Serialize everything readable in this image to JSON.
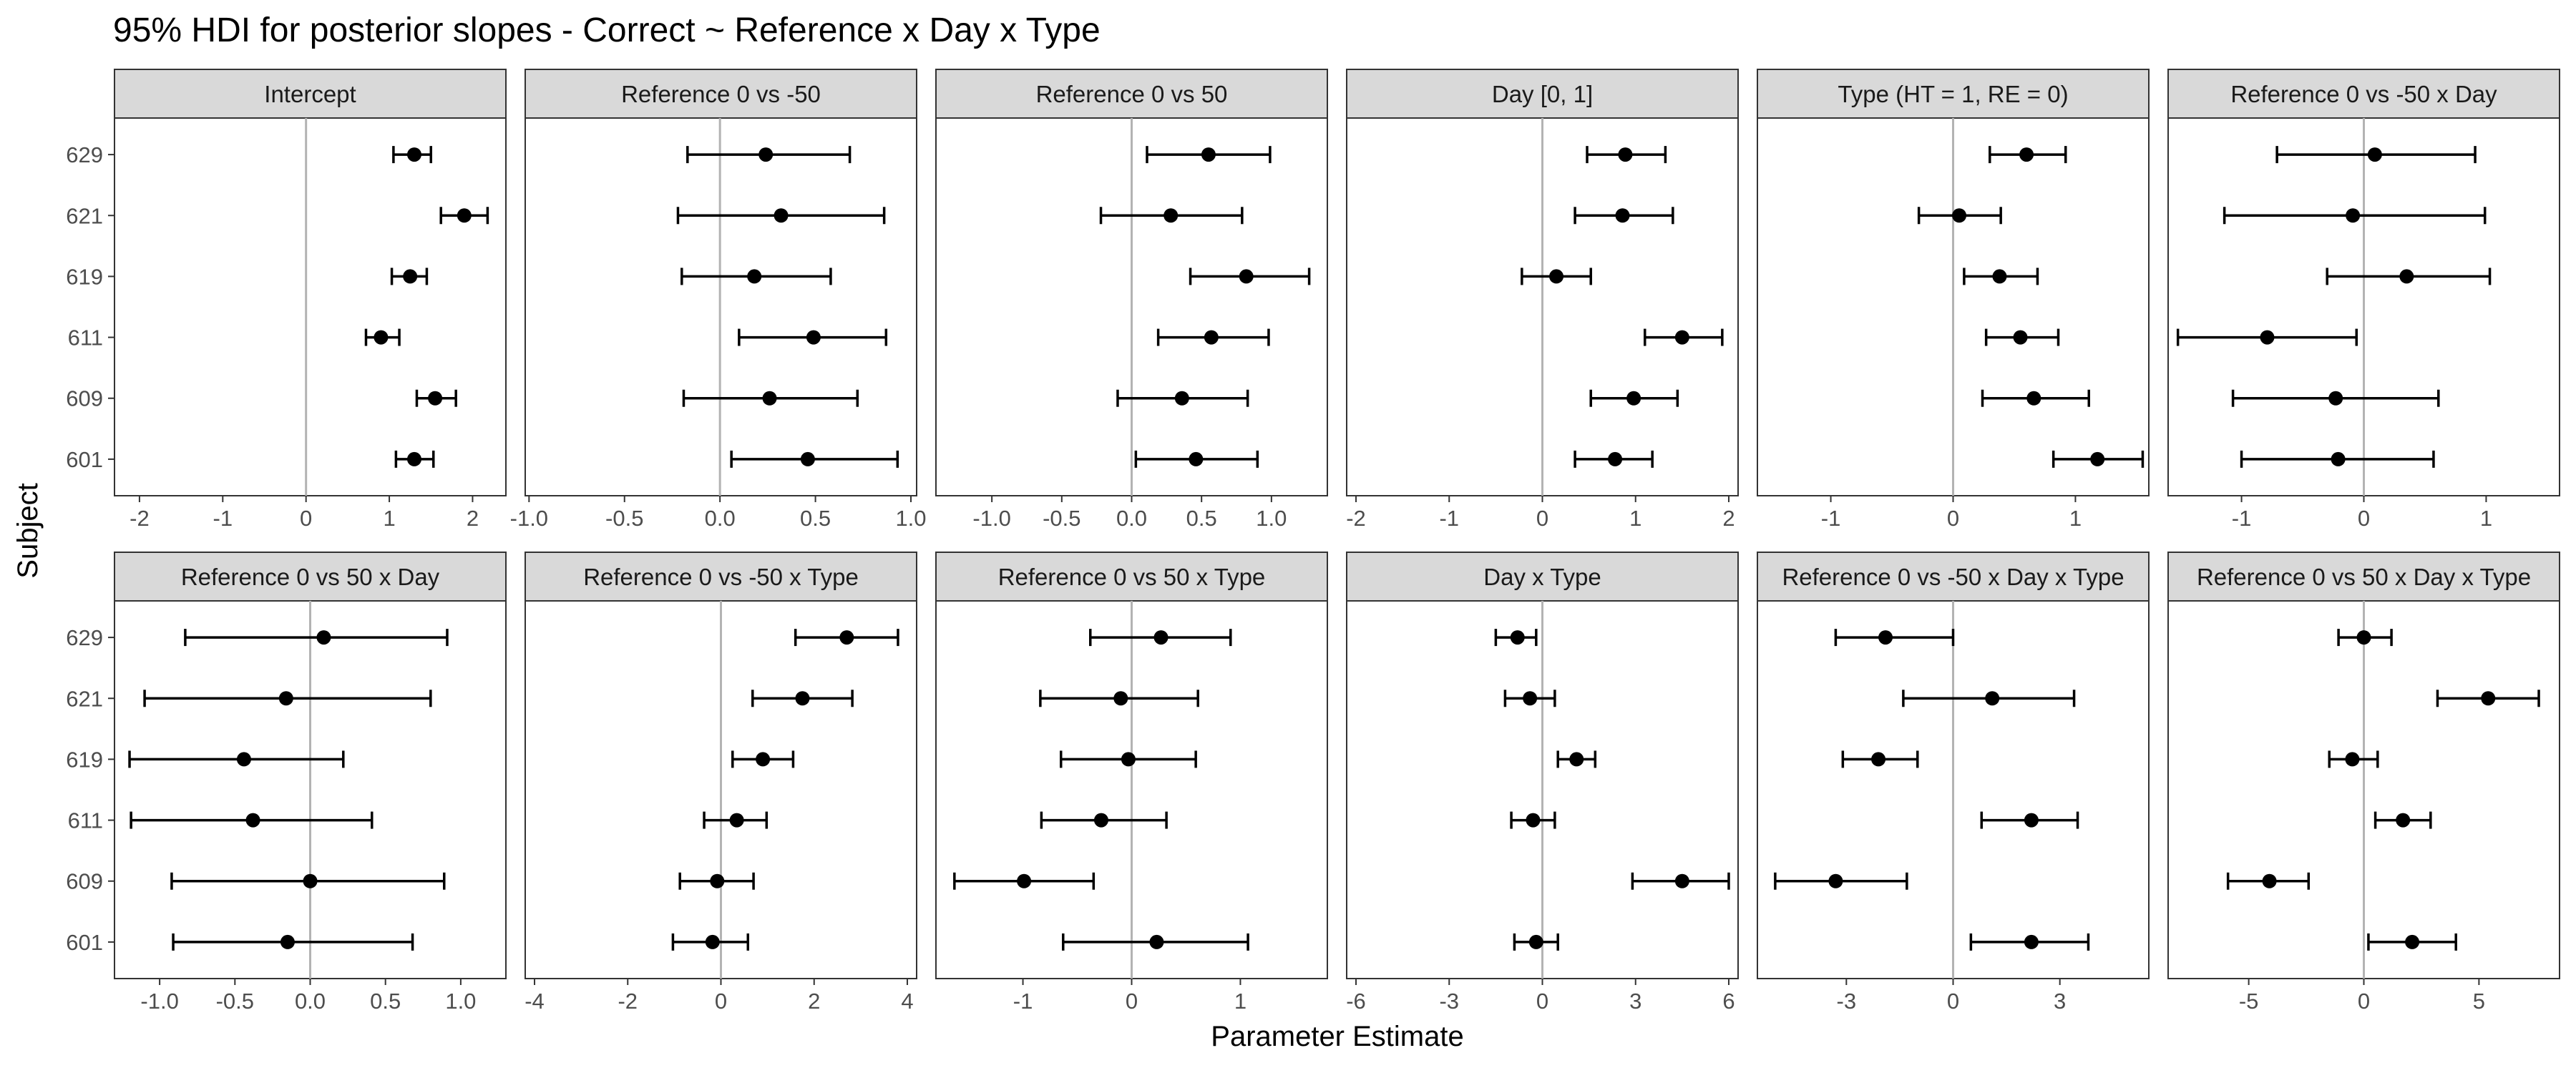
{
  "chart_data": {
    "type": "forest",
    "title": "95% HDI for posterior slopes - Correct ~ Reference x Day x Type",
    "xlabel": "Parameter Estimate",
    "ylabel": "Subject",
    "subjects": [
      "629",
      "621",
      "619",
      "611",
      "609",
      "601"
    ],
    "reference_line": 0,
    "grid": false,
    "panels": [
      {
        "name": "Intercept",
        "xlim": [
          -2.3,
          2.4
        ],
        "ticks": [
          -2,
          -1,
          0,
          1,
          2
        ],
        "tick_labels": [
          "-2",
          "-1",
          "0",
          "1",
          "2"
        ],
        "estimates": [
          1.3,
          1.9,
          1.25,
          0.9,
          1.55,
          1.3
        ],
        "lower": [
          1.05,
          1.62,
          1.03,
          0.72,
          1.33,
          1.08
        ],
        "upper": [
          1.5,
          2.18,
          1.45,
          1.12,
          1.8,
          1.53
        ]
      },
      {
        "name": "Reference 0 vs -50",
        "xlim": [
          -1.02,
          1.03
        ],
        "ticks": [
          -1.0,
          -0.5,
          0.0,
          0.5,
          1.0
        ],
        "tick_labels": [
          "-1.0",
          "-0.5",
          "0.0",
          "0.5",
          "1.0"
        ],
        "estimates": [
          0.24,
          0.32,
          0.18,
          0.49,
          0.26,
          0.46
        ],
        "lower": [
          -0.17,
          -0.22,
          -0.2,
          0.1,
          -0.19,
          0.06
        ],
        "upper": [
          0.68,
          0.86,
          0.58,
          0.87,
          0.72,
          0.93
        ]
      },
      {
        "name": "Reference 0 vs 50",
        "xlim": [
          -1.4,
          1.4
        ],
        "ticks": [
          -1.0,
          -0.5,
          0.0,
          0.5,
          1.0
        ],
        "tick_labels": [
          "-1.0",
          "-0.5",
          "0.0",
          "0.5",
          "1.0"
        ],
        "estimates": [
          0.55,
          0.28,
          0.82,
          0.57,
          0.36,
          0.46
        ],
        "lower": [
          0.11,
          -0.22,
          0.42,
          0.19,
          -0.1,
          0.03
        ],
        "upper": [
          0.99,
          0.79,
          1.27,
          0.98,
          0.83,
          0.9
        ]
      },
      {
        "name": "Day [0, 1]",
        "xlim": [
          -2.1,
          2.1
        ],
        "ticks": [
          -2,
          -1,
          0,
          1,
          2
        ],
        "tick_labels": [
          "-2",
          "-1",
          "0",
          "1",
          "2"
        ],
        "estimates": [
          0.89,
          0.86,
          0.15,
          1.5,
          0.98,
          0.78
        ],
        "lower": [
          0.48,
          0.35,
          -0.22,
          1.1,
          0.52,
          0.35
        ],
        "upper": [
          1.32,
          1.4,
          0.52,
          1.93,
          1.45,
          1.18
        ]
      },
      {
        "name": "Type (HT = 1, RE = 0)",
        "xlim": [
          -1.6,
          1.6
        ],
        "ticks": [
          -1,
          0,
          1
        ],
        "tick_labels": [
          "-1",
          "0",
          "1"
        ],
        "estimates": [
          0.6,
          0.05,
          0.38,
          0.55,
          0.66,
          1.18
        ],
        "lower": [
          0.3,
          -0.28,
          0.09,
          0.27,
          0.24,
          0.82
        ],
        "upper": [
          0.92,
          0.39,
          0.69,
          0.86,
          1.11,
          1.55
        ]
      },
      {
        "name": "Reference 0 vs -50 x Day",
        "xlim": [
          -1.6,
          1.6
        ],
        "ticks": [
          -1,
          0,
          1
        ],
        "tick_labels": [
          "-1",
          "0",
          "1"
        ],
        "estimates": [
          0.09,
          -0.09,
          0.35,
          -0.79,
          -0.23,
          -0.21
        ],
        "lower": [
          -0.71,
          -1.14,
          -0.3,
          -1.52,
          -1.07,
          -1.0
        ],
        "upper": [
          0.91,
          0.99,
          1.03,
          -0.06,
          0.61,
          0.57
        ]
      },
      {
        "name": "Reference 0 vs 50 x Day",
        "xlim": [
          -1.3,
          1.3
        ],
        "ticks": [
          -1.0,
          -0.5,
          0.0,
          0.5,
          1.0
        ],
        "tick_labels": [
          "-1.0",
          "-0.5",
          "0.0",
          "0.5",
          "1.0"
        ],
        "estimates": [
          0.09,
          -0.16,
          -0.44,
          -0.38,
          0.0,
          -0.15
        ],
        "lower": [
          -0.83,
          -1.1,
          -1.2,
          -1.19,
          -0.92,
          -0.91
        ],
        "upper": [
          0.91,
          0.8,
          0.22,
          0.41,
          0.89,
          0.68
        ]
      },
      {
        "name": "Reference 0 vs -50 x Type",
        "xlim": [
          -4.2,
          4.2
        ],
        "ticks": [
          -4,
          -2,
          0,
          2,
          4
        ],
        "tick_labels": [
          "-4",
          "-2",
          "0",
          "2",
          "4"
        ],
        "estimates": [
          2.7,
          1.75,
          0.9,
          0.34,
          -0.08,
          -0.18
        ],
        "lower": [
          1.6,
          0.68,
          0.25,
          -0.36,
          -0.88,
          -1.03
        ],
        "upper": [
          3.8,
          2.82,
          1.55,
          0.98,
          0.7,
          0.58
        ]
      },
      {
        "name": "Reference 0 vs 50 x Type",
        "xlim": [
          -1.8,
          1.8
        ],
        "ticks": [
          -1,
          0,
          1
        ],
        "tick_labels": [
          "-1",
          "0",
          "1"
        ],
        "estimates": [
          0.27,
          -0.1,
          -0.03,
          -0.28,
          -0.99,
          0.23
        ],
        "lower": [
          -0.38,
          -0.84,
          -0.65,
          -0.83,
          -1.63,
          -0.63
        ],
        "upper": [
          0.91,
          0.61,
          0.59,
          0.32,
          -0.35,
          1.07
        ]
      },
      {
        "name": "Day x Type",
        "xlim": [
          -6.3,
          6.3
        ],
        "ticks": [
          -6,
          -3,
          0,
          3,
          6
        ],
        "tick_labels": [
          "-6",
          "-3",
          "0",
          "3",
          "6"
        ],
        "estimates": [
          -0.8,
          -0.4,
          1.1,
          -0.3,
          4.5,
          -0.2
        ],
        "lower": [
          -1.5,
          -1.2,
          0.5,
          -1.0,
          2.9,
          -0.9
        ],
        "upper": [
          -0.2,
          0.4,
          1.7,
          0.4,
          6.0,
          0.5
        ]
      },
      {
        "name": "Reference 0 vs -50 x Day x Type",
        "xlim": [
          -5.5,
          5.5
        ],
        "ticks": [
          -3,
          0,
          3
        ],
        "tick_labels": [
          "-3",
          "0",
          "3"
        ],
        "estimates": [
          -1.9,
          1.1,
          -2.1,
          2.2,
          -3.3,
          2.2
        ],
        "lower": [
          -3.3,
          -1.4,
          -3.1,
          0.8,
          -5.0,
          0.5
        ],
        "upper": [
          0.0,
          3.4,
          -1.0,
          3.5,
          -1.3,
          3.8
        ]
      },
      {
        "name": "Reference 0 vs 50 x Day x Type",
        "xlim": [
          -8.5,
          8.5
        ],
        "ticks": [
          -5,
          0,
          5
        ],
        "tick_labels": [
          "-5",
          "0",
          "5"
        ],
        "estimates": [
          0.0,
          5.4,
          -0.5,
          1.7,
          -4.1,
          2.1
        ],
        "lower": [
          -1.1,
          3.2,
          -1.5,
          0.5,
          -5.9,
          0.2
        ],
        "upper": [
          1.2,
          7.6,
          0.6,
          2.9,
          -2.4,
          4.0
        ]
      }
    ]
  }
}
